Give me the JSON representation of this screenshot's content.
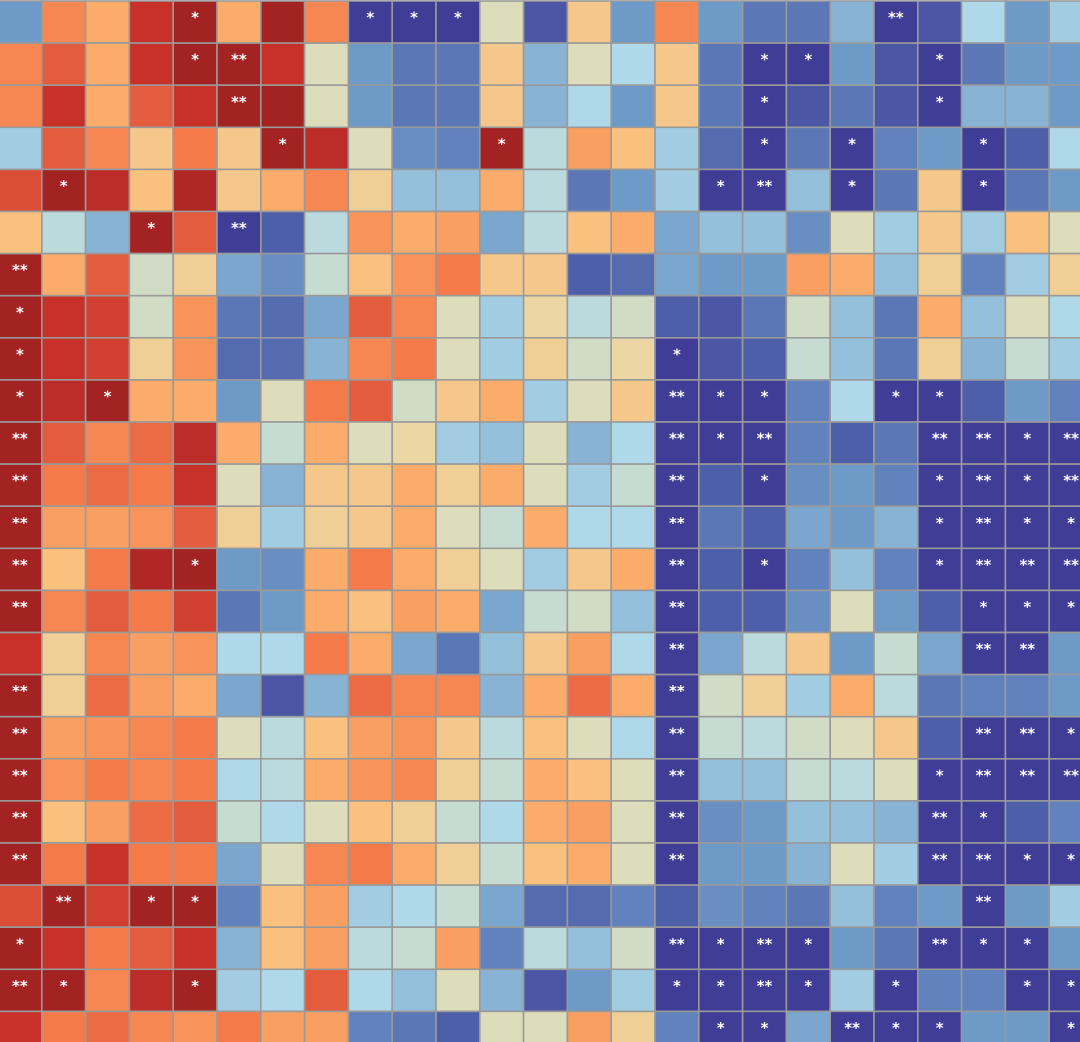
{
  "chart_data": {
    "type": "heatmap",
    "vlim": [
      -1,
      1
    ],
    "colorscale": [
      "#3d3592",
      "#4e5fa9",
      "#6e9ac8",
      "#afd9e8",
      "#e8deb0",
      "#fdb872",
      "#f47a4a",
      "#c8302a",
      "#8b1a1e"
    ],
    "values": [
      [
        -0.5,
        0.45,
        0.3,
        0.75,
        0.9,
        0.3,
        0.9,
        0.45,
        -0.95,
        -0.95,
        -0.95,
        -0.05,
        -0.8,
        0.15,
        -0.5,
        0.45,
        -0.5,
        -0.65,
        -0.65,
        -0.4,
        -0.95,
        -0.8,
        -0.25,
        -0.5,
        -0.3
      ],
      [
        0.45,
        0.6,
        0.3,
        0.75,
        0.9,
        0.9,
        0.75,
        -0.05,
        -0.5,
        -0.65,
        -0.65,
        0.15,
        -0.4,
        -0.05,
        -0.25,
        0.15,
        -0.65,
        -0.95,
        -0.95,
        -0.5,
        -0.8,
        -0.95,
        -0.65,
        -0.5,
        -0.5
      ],
      [
        0.45,
        0.75,
        0.3,
        0.6,
        0.75,
        0.9,
        0.9,
        -0.05,
        -0.5,
        -0.65,
        -0.65,
        0.15,
        -0.4,
        -0.25,
        -0.5,
        0.15,
        -0.65,
        -0.95,
        -0.8,
        -0.65,
        -0.8,
        -0.95,
        -0.4,
        -0.4,
        -0.5
      ],
      [
        -0.3,
        0.6,
        0.45,
        0.15,
        0.5,
        0.15,
        0.9,
        0.8,
        -0.05,
        -0.55,
        -0.6,
        0.9,
        -0.2,
        0.35,
        0.2,
        -0.3,
        -0.7,
        -0.95,
        -0.65,
        -0.95,
        -0.6,
        -0.5,
        -0.95,
        -0.75,
        -0.25
      ],
      [
        0.65,
        0.9,
        0.8,
        0.2,
        0.85,
        0.15,
        0.3,
        0.45,
        0.1,
        -0.35,
        -0.35,
        0.3,
        -0.2,
        -0.65,
        -0.5,
        -0.3,
        -0.95,
        -0.95,
        -0.35,
        -0.95,
        -0.65,
        0.15,
        -0.95,
        -0.65,
        -0.5
      ],
      [
        0.2,
        -0.2,
        -0.4,
        0.9,
        0.6,
        -0.95,
        -0.75,
        -0.2,
        0.4,
        0.3,
        0.35,
        -0.45,
        -0.2,
        0.2,
        0.3,
        -0.45,
        -0.35,
        -0.35,
        -0.55,
        -0.05,
        -0.3,
        0.15,
        -0.3,
        0.2,
        -0.05
      ],
      [
        0.9,
        0.3,
        0.6,
        -0.1,
        0.1,
        -0.45,
        -0.55,
        -0.15,
        0.2,
        0.4,
        0.5,
        0.15,
        0.15,
        -0.75,
        -0.7,
        -0.45,
        -0.5,
        -0.5,
        0.35,
        0.3,
        -0.35,
        0.1,
        -0.6,
        -0.3,
        0.1
      ],
      [
        0.9,
        0.75,
        0.7,
        -0.1,
        0.4,
        -0.65,
        -0.7,
        -0.45,
        0.6,
        0.45,
        -0.05,
        -0.3,
        0.05,
        -0.2,
        -0.1,
        -0.75,
        -0.8,
        -0.65,
        -0.1,
        -0.35,
        -0.65,
        0.3,
        -0.35,
        -0.05,
        -0.25
      ],
      [
        0.9,
        0.75,
        0.7,
        0.1,
        0.4,
        -0.7,
        -0.7,
        -0.4,
        0.45,
        0.5,
        -0.05,
        -0.3,
        0.1,
        -0.1,
        0.05,
        -0.95,
        -0.8,
        -0.75,
        -0.15,
        -0.35,
        -0.65,
        0.1,
        -0.4,
        -0.15,
        -0.3
      ],
      [
        0.9,
        0.8,
        0.9,
        0.3,
        0.3,
        -0.5,
        -0.05,
        0.5,
        0.6,
        -0.1,
        0.15,
        0.3,
        -0.3,
        -0.05,
        0.15,
        -0.95,
        -0.95,
        -0.95,
        -0.6,
        -0.25,
        -0.95,
        -0.95,
        -0.75,
        -0.5,
        -0.6
      ],
      [
        0.9,
        0.6,
        0.45,
        0.55,
        0.8,
        0.3,
        -0.15,
        0.3,
        -0.05,
        0.05,
        -0.3,
        -0.35,
        -0.05,
        -0.4,
        -0.25,
        -0.95,
        -0.95,
        -0.95,
        -0.6,
        -0.75,
        -0.65,
        -0.95,
        -0.95,
        -0.95,
        -0.95
      ],
      [
        0.9,
        0.5,
        0.55,
        0.5,
        0.75,
        -0.05,
        -0.4,
        0.15,
        0.15,
        0.3,
        0.1,
        0.3,
        -0.05,
        -0.3,
        -0.15,
        -0.95,
        -0.75,
        -0.95,
        -0.55,
        -0.5,
        -0.6,
        -0.95,
        -0.95,
        -0.95,
        -0.95
      ],
      [
        0.9,
        0.35,
        0.35,
        0.4,
        0.6,
        0.1,
        -0.3,
        0.1,
        0.15,
        0.3,
        -0.05,
        -0.15,
        0.3,
        -0.25,
        -0.25,
        -0.95,
        -0.65,
        -0.75,
        -0.45,
        -0.5,
        -0.4,
        -0.95,
        -0.95,
        -0.95,
        -0.95
      ],
      [
        0.9,
        0.2,
        0.5,
        0.85,
        0.9,
        -0.5,
        -0.55,
        0.3,
        0.5,
        0.3,
        0.1,
        -0.05,
        -0.3,
        0.15,
        0.3,
        -0.95,
        -0.75,
        -0.95,
        -0.6,
        -0.35,
        -0.6,
        -0.95,
        -0.95,
        -0.95,
        -0.95
      ],
      [
        0.9,
        0.45,
        0.6,
        0.5,
        0.7,
        -0.65,
        -0.5,
        0.3,
        0.2,
        0.35,
        0.3,
        -0.45,
        -0.15,
        -0.1,
        -0.35,
        -0.95,
        -0.75,
        -0.75,
        -0.55,
        -0.05,
        -0.5,
        -0.75,
        -0.95,
        -0.95,
        -0.95
      ],
      [
        0.75,
        0.1,
        0.45,
        0.35,
        0.4,
        -0.25,
        -0.25,
        0.5,
        0.3,
        -0.45,
        -0.65,
        -0.35,
        0.15,
        0.35,
        -0.25,
        -0.95,
        -0.45,
        -0.2,
        0.15,
        -0.5,
        -0.15,
        -0.45,
        -0.95,
        -0.95,
        -0.5
      ],
      [
        0.9,
        0.1,
        0.55,
        0.35,
        0.3,
        -0.45,
        -0.8,
        -0.4,
        0.55,
        0.45,
        0.45,
        -0.4,
        0.3,
        0.55,
        0.3,
        -0.95,
        -0.1,
        0.1,
        -0.3,
        0.3,
        -0.2,
        -0.65,
        -0.6,
        -0.6,
        -0.5
      ],
      [
        0.9,
        0.35,
        0.4,
        0.45,
        0.5,
        -0.05,
        -0.2,
        0.2,
        0.35,
        0.4,
        0.15,
        -0.2,
        0.2,
        -0.05,
        -0.25,
        -0.95,
        -0.15,
        -0.2,
        -0.1,
        -0.05,
        0.15,
        -0.75,
        -0.95,
        -0.95,
        -0.95
      ],
      [
        0.9,
        0.4,
        0.5,
        0.45,
        0.5,
        -0.25,
        -0.2,
        0.3,
        0.4,
        0.45,
        0.1,
        -0.15,
        0.3,
        0.2,
        -0.05,
        -0.95,
        -0.35,
        -0.35,
        -0.15,
        -0.2,
        -0.05,
        -0.95,
        -0.95,
        -0.95,
        -0.95
      ],
      [
        0.9,
        0.2,
        0.35,
        0.55,
        0.6,
        -0.15,
        -0.25,
        -0.05,
        0.2,
        0.1,
        -0.15,
        -0.25,
        0.3,
        0.35,
        -0.05,
        -0.95,
        -0.55,
        -0.5,
        -0.35,
        -0.35,
        -0.4,
        -0.95,
        -0.95,
        -0.75,
        -0.6
      ],
      [
        0.9,
        0.5,
        0.75,
        0.5,
        0.5,
        -0.45,
        -0.05,
        0.45,
        0.5,
        0.3,
        0.1,
        -0.15,
        0.2,
        0.3,
        -0.05,
        -0.95,
        -0.5,
        -0.5,
        -0.4,
        -0.05,
        -0.3,
        -0.95,
        -0.95,
        -0.95,
        -0.95
      ],
      [
        0.65,
        0.9,
        0.7,
        0.9,
        0.9,
        -0.6,
        0.2,
        0.35,
        -0.3,
        -0.25,
        -0.15,
        -0.45,
        -0.7,
        -0.7,
        -0.6,
        -0.75,
        -0.55,
        -0.6,
        -0.65,
        -0.35,
        -0.6,
        -0.5,
        -0.95,
        -0.5,
        -0.3
      ],
      [
        0.9,
        0.75,
        0.5,
        0.6,
        0.75,
        -0.4,
        0.2,
        0.35,
        -0.2,
        -0.15,
        0.35,
        -0.6,
        -0.2,
        -0.35,
        -0.1,
        -0.95,
        -0.95,
        -0.95,
        -0.95,
        -0.5,
        -0.65,
        -0.95,
        -0.95,
        -0.95,
        -0.5
      ],
      [
        0.9,
        0.9,
        0.45,
        0.8,
        0.9,
        -0.3,
        -0.25,
        0.6,
        -0.25,
        -0.35,
        -0.05,
        -0.4,
        -0.8,
        -0.5,
        -0.3,
        -0.95,
        -0.95,
        -0.95,
        -0.95,
        -0.3,
        -0.95,
        -0.6,
        -0.6,
        -0.95,
        -0.95
      ],
      [
        0.75,
        0.5,
        0.55,
        0.45,
        0.4,
        0.5,
        0.35,
        0.35,
        -0.6,
        -0.65,
        -0.75,
        -0.05,
        -0.05,
        0.35,
        0.1,
        -0.6,
        -0.95,
        -0.95,
        -0.45,
        -0.95,
        -0.95,
        -0.95,
        -0.5,
        -0.5,
        -0.95
      ]
    ],
    "labels": [
      [
        null,
        null,
        null,
        null,
        "*",
        null,
        null,
        null,
        "*",
        "*",
        "*",
        null,
        null,
        null,
        null,
        null,
        null,
        null,
        null,
        null,
        "**",
        null,
        null,
        null,
        null
      ],
      [
        null,
        null,
        null,
        null,
        "*",
        "**",
        null,
        null,
        null,
        null,
        null,
        null,
        null,
        null,
        null,
        null,
        null,
        "*",
        "*",
        null,
        null,
        "*",
        null,
        null,
        null
      ],
      [
        null,
        null,
        null,
        null,
        null,
        "**",
        null,
        null,
        null,
        null,
        null,
        null,
        null,
        null,
        null,
        null,
        null,
        "*",
        null,
        null,
        null,
        "*",
        null,
        null,
        null
      ],
      [
        null,
        null,
        null,
        null,
        null,
        null,
        "*",
        null,
        null,
        null,
        null,
        "*",
        null,
        null,
        null,
        null,
        null,
        "*",
        null,
        "*",
        null,
        null,
        "*",
        null,
        null
      ],
      [
        null,
        "*",
        null,
        null,
        null,
        null,
        null,
        null,
        null,
        null,
        null,
        null,
        null,
        null,
        null,
        null,
        "*",
        "**",
        null,
        "*",
        null,
        null,
        "*",
        null,
        null
      ],
      [
        null,
        null,
        null,
        "*",
        null,
        "**",
        null,
        null,
        null,
        null,
        null,
        null,
        null,
        null,
        null,
        null,
        null,
        null,
        null,
        null,
        null,
        null,
        null,
        null,
        null
      ],
      [
        "**",
        null,
        null,
        null,
        null,
        null,
        null,
        null,
        null,
        null,
        null,
        null,
        null,
        null,
        null,
        null,
        null,
        null,
        null,
        null,
        null,
        null,
        null,
        null,
        null
      ],
      [
        "*",
        null,
        null,
        null,
        null,
        null,
        null,
        null,
        null,
        null,
        null,
        null,
        null,
        null,
        null,
        null,
        null,
        null,
        null,
        null,
        null,
        null,
        null,
        null,
        null
      ],
      [
        "*",
        null,
        null,
        null,
        null,
        null,
        null,
        null,
        null,
        null,
        null,
        null,
        null,
        null,
        null,
        "*",
        null,
        null,
        null,
        null,
        null,
        null,
        null,
        null,
        null
      ],
      [
        "*",
        null,
        "*",
        null,
        null,
        null,
        null,
        null,
        null,
        null,
        null,
        null,
        null,
        null,
        null,
        "**",
        "*",
        "*",
        null,
        null,
        "*",
        "*",
        null,
        null,
        null
      ],
      [
        "**",
        null,
        null,
        null,
        null,
        null,
        null,
        null,
        null,
        null,
        null,
        null,
        null,
        null,
        null,
        "**",
        "*",
        "**",
        null,
        null,
        null,
        "**",
        "**",
        "*",
        "**"
      ],
      [
        "**",
        null,
        null,
        null,
        null,
        null,
        null,
        null,
        null,
        null,
        null,
        null,
        null,
        null,
        null,
        "**",
        null,
        "*",
        null,
        null,
        null,
        "*",
        "**",
        "*",
        "**"
      ],
      [
        "**",
        null,
        null,
        null,
        null,
        null,
        null,
        null,
        null,
        null,
        null,
        null,
        null,
        null,
        null,
        "**",
        null,
        null,
        null,
        null,
        null,
        "*",
        "**",
        "*",
        "*"
      ],
      [
        "**",
        null,
        null,
        null,
        "*",
        null,
        null,
        null,
        null,
        null,
        null,
        null,
        null,
        null,
        null,
        "**",
        null,
        "*",
        null,
        null,
        null,
        "*",
        "**",
        "**",
        "**"
      ],
      [
        "**",
        null,
        null,
        null,
        null,
        null,
        null,
        null,
        null,
        null,
        null,
        null,
        null,
        null,
        null,
        "**",
        null,
        null,
        null,
        null,
        null,
        null,
        "*",
        "*",
        "*"
      ],
      [
        null,
        null,
        null,
        null,
        null,
        null,
        null,
        null,
        null,
        null,
        null,
        null,
        null,
        null,
        null,
        "**",
        null,
        null,
        null,
        null,
        null,
        null,
        "**",
        "**",
        null
      ],
      [
        "**",
        null,
        null,
        null,
        null,
        null,
        null,
        null,
        null,
        null,
        null,
        null,
        null,
        null,
        null,
        "**",
        null,
        null,
        null,
        null,
        null,
        null,
        null,
        null,
        null
      ],
      [
        "**",
        null,
        null,
        null,
        null,
        null,
        null,
        null,
        null,
        null,
        null,
        null,
        null,
        null,
        null,
        "**",
        null,
        null,
        null,
        null,
        null,
        null,
        "**",
        "**",
        "*"
      ],
      [
        "**",
        null,
        null,
        null,
        null,
        null,
        null,
        null,
        null,
        null,
        null,
        null,
        null,
        null,
        null,
        "**",
        null,
        null,
        null,
        null,
        null,
        "*",
        "**",
        "**",
        "**"
      ],
      [
        "**",
        null,
        null,
        null,
        null,
        null,
        null,
        null,
        null,
        null,
        null,
        null,
        null,
        null,
        null,
        "**",
        null,
        null,
        null,
        null,
        null,
        "**",
        "*",
        null,
        null
      ],
      [
        "**",
        null,
        null,
        null,
        null,
        null,
        null,
        null,
        null,
        null,
        null,
        null,
        null,
        null,
        null,
        "**",
        null,
        null,
        null,
        null,
        null,
        "**",
        "**",
        "*",
        "*"
      ],
      [
        null,
        "**",
        null,
        "*",
        "*",
        null,
        null,
        null,
        null,
        null,
        null,
        null,
        null,
        null,
        null,
        null,
        null,
        null,
        null,
        null,
        null,
        null,
        "**",
        null,
        null
      ],
      [
        "*",
        null,
        null,
        null,
        null,
        null,
        null,
        null,
        null,
        null,
        null,
        null,
        null,
        null,
        null,
        "**",
        "*",
        "**",
        "*",
        null,
        null,
        "**",
        "*",
        "*",
        null
      ],
      [
        "**",
        "*",
        null,
        null,
        "*",
        null,
        null,
        null,
        null,
        null,
        null,
        null,
        null,
        null,
        null,
        "*",
        "*",
        "**",
        "*",
        null,
        "*",
        null,
        null,
        "*",
        "*"
      ],
      [
        null,
        null,
        null,
        null,
        null,
        null,
        null,
        null,
        null,
        null,
        null,
        null,
        null,
        null,
        null,
        null,
        "*",
        "*",
        null,
        "**",
        "*",
        "*",
        null,
        null,
        "*"
      ]
    ]
  }
}
